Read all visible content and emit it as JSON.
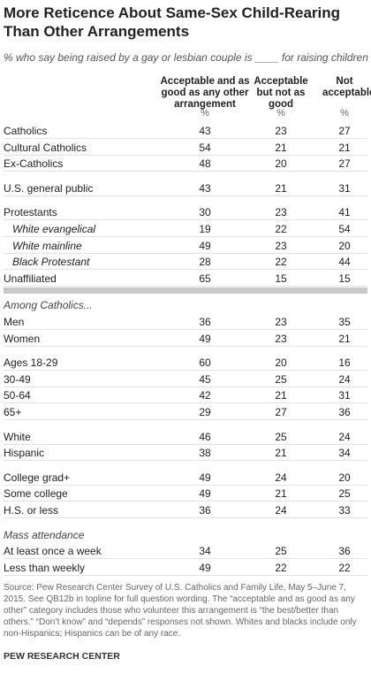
{
  "header": {
    "title": "More Reticence About Same-Sex Child-Rearing Than Other Arrangements",
    "subtitle": "% who say being raised by a gay or lesbian couple is ____ for raising children"
  },
  "table": {
    "columns": [
      "Acceptable and as good as any other arrangement",
      "Acceptable but not as good",
      "Not acceptable"
    ],
    "units": [
      "%",
      "%",
      "%"
    ],
    "sections": [
      {
        "rows": [
          {
            "label": "Catholics",
            "values": [
              43,
              23,
              27
            ]
          },
          {
            "label": "Cultural Catholics",
            "values": [
              54,
              21,
              21
            ]
          },
          {
            "label": "Ex-Catholics",
            "values": [
              48,
              20,
              27
            ]
          }
        ]
      },
      {
        "rows": [
          {
            "label": "U.S. general public",
            "values": [
              43,
              21,
              31
            ]
          }
        ]
      },
      {
        "rows": [
          {
            "label": "Protestants",
            "values": [
              30,
              23,
              41
            ],
            "subrows": [
              {
                "label": "White evangelical",
                "values": [
                  19,
                  22,
                  54
                ]
              },
              {
                "label": "White mainline",
                "values": [
                  49,
                  23,
                  20
                ]
              },
              {
                "label": "Black Protestant",
                "values": [
                  28,
                  22,
                  44
                ]
              }
            ]
          },
          {
            "label": "Unaffiliated",
            "values": [
              65,
              15,
              15
            ]
          }
        ]
      }
    ],
    "catholic_heading": "Among Catholics...",
    "catholic_sections": [
      {
        "rows": [
          {
            "label": "Men",
            "values": [
              36,
              23,
              35
            ]
          },
          {
            "label": "Women",
            "values": [
              49,
              23,
              21
            ]
          }
        ]
      },
      {
        "rows": [
          {
            "label": "Ages 18-29",
            "values": [
              60,
              20,
              16
            ]
          },
          {
            "label": "30-49",
            "values": [
              45,
              25,
              24
            ]
          },
          {
            "label": "50-64",
            "values": [
              42,
              21,
              31
            ]
          },
          {
            "label": "65+",
            "values": [
              29,
              27,
              36
            ]
          }
        ]
      },
      {
        "rows": [
          {
            "label": "White",
            "values": [
              46,
              25,
              24
            ]
          },
          {
            "label": "Hispanic",
            "values": [
              38,
              21,
              34
            ]
          }
        ]
      },
      {
        "rows": [
          {
            "label": "College grad+",
            "values": [
              49,
              24,
              20
            ]
          },
          {
            "label": "Some college",
            "values": [
              49,
              21,
              25
            ]
          },
          {
            "label": "H.S. or less",
            "values": [
              36,
              24,
              33
            ]
          }
        ]
      },
      {
        "heading": "Mass attendance",
        "rows": [
          {
            "label": "At least once a week",
            "values": [
              34,
              25,
              36
            ]
          },
          {
            "label": "Less than weekly",
            "values": [
              49,
              22,
              22
            ]
          }
        ]
      }
    ]
  },
  "footer": {
    "source": "Source: Pew Research Center Survey of U.S. Catholics and Family Life, May 5–June 7, 2015. See QB12b in topline for full question wording. The “acceptable and as good as any other” category includes those who volunteer this arrangement is “the best/better than others.” “Don’t know” and “depends” responses not shown. Whites and blacks include only non-Hispanics; Hispanics can be of any race.",
    "brand": "PEW RESEARCH CENTER"
  }
}
